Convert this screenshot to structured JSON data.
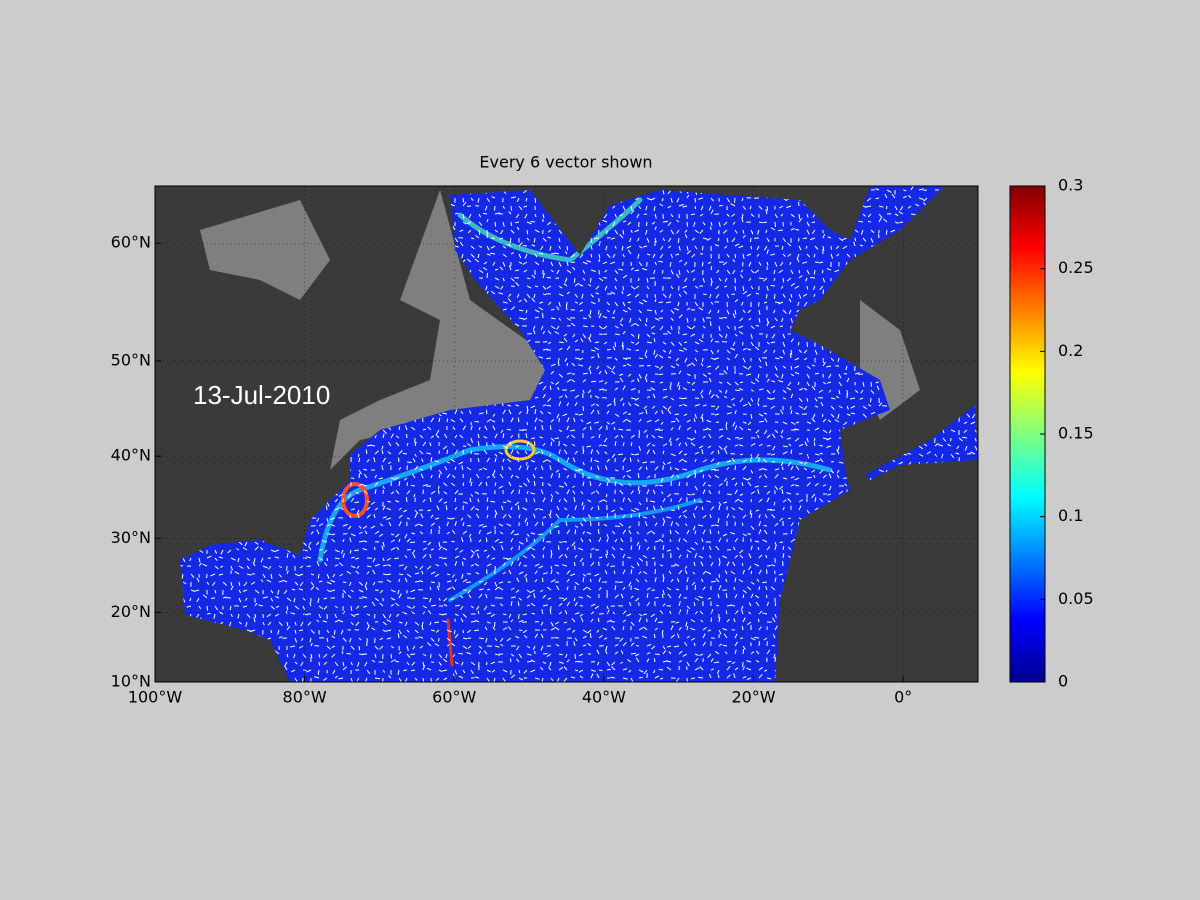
{
  "map": {
    "title": "Every 6 vector shown",
    "date_label": "13-Jul-2010",
    "projection": "mercator",
    "grid": true,
    "xlim": [
      -100,
      10
    ],
    "ylim": [
      10,
      64
    ],
    "xticks": [
      {
        "value": -100,
        "label": "100°W"
      },
      {
        "value": -80,
        "label": "80°W"
      },
      {
        "value": -60,
        "label": "60°W"
      },
      {
        "value": -40,
        "label": "40°W"
      },
      {
        "value": -20,
        "label": "20°W"
      },
      {
        "value": 0,
        "label": "0°"
      }
    ],
    "yticks": [
      {
        "value": 10,
        "label": "10°N"
      },
      {
        "value": 20,
        "label": "20°N"
      },
      {
        "value": 30,
        "label": "30°N"
      },
      {
        "value": 40,
        "label": "40°N"
      },
      {
        "value": 50,
        "label": "50°N"
      },
      {
        "value": 60,
        "label": "60°N"
      }
    ]
  },
  "colorbar": {
    "clim": [
      0,
      0.3
    ],
    "ticks": [
      0,
      0.05,
      0.1,
      0.15,
      0.2,
      0.25,
      0.3
    ]
  }
}
